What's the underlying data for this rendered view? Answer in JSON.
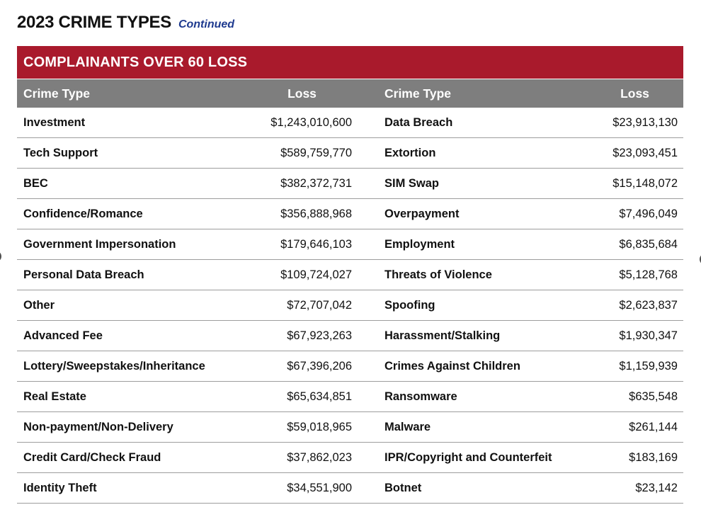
{
  "page": {
    "title": "2023 CRIME TYPES",
    "subtitle": "Continued"
  },
  "table": {
    "banner": "COMPLAINANTS OVER 60 LOSS",
    "column_headers": {
      "crime_type": "Crime Type",
      "loss": "Loss"
    },
    "rows": [
      {
        "left_type": "Investment",
        "left_loss": "$1,243,010,600",
        "right_type": "Data Breach",
        "right_loss": "$23,913,130"
      },
      {
        "left_type": "Tech Support",
        "left_loss": "$589,759,770",
        "right_type": "Extortion",
        "right_loss": "$23,093,451"
      },
      {
        "left_type": "BEC",
        "left_loss": "$382,372,731",
        "right_type": "SIM Swap",
        "right_loss": "$15,148,072"
      },
      {
        "left_type": "Confidence/Romance",
        "left_loss": "$356,888,968",
        "right_type": "Overpayment",
        "right_loss": "$7,496,049"
      },
      {
        "left_type": "Government Impersonation",
        "left_loss": "$179,646,103",
        "right_type": "Employment",
        "right_loss": "$6,835,684"
      },
      {
        "left_type": "Personal Data Breach",
        "left_loss": "$109,724,027",
        "right_type": "Threats of Violence",
        "right_loss": "$5,128,768"
      },
      {
        "left_type": "Other",
        "left_loss": "$72,707,042",
        "right_type": "Spoofing",
        "right_loss": "$2,623,837"
      },
      {
        "left_type": "Advanced Fee",
        "left_loss": "$67,923,263",
        "right_type": "Harassment/Stalking",
        "right_loss": "$1,930,347"
      },
      {
        "left_type": "Lottery/Sweepstakes/Inheritance",
        "left_loss": "$67,396,206",
        "right_type": "Crimes Against Children",
        "right_loss": "$1,159,939"
      },
      {
        "left_type": "Real Estate",
        "left_loss": "$65,634,851",
        "right_type": "Ransomware",
        "right_loss": "$635,548"
      },
      {
        "left_type": "Non-payment/Non-Delivery",
        "left_loss": "$59,018,965",
        "right_type": "Malware",
        "right_loss": "$261,144"
      },
      {
        "left_type": "Credit Card/Check Fraud",
        "left_loss": "$37,862,023",
        "right_type": "IPR/Copyright and Counterfeit",
        "right_loss": "$183,169"
      },
      {
        "left_type": "Identity Theft",
        "left_loss": "$34,551,900",
        "right_type": "Botnet",
        "right_loss": "$23,142"
      }
    ]
  },
  "icons": {
    "left_edge": "page-nav-circle-left",
    "right_edge": "page-nav-circle-right"
  },
  "colors": {
    "banner_red": "#A91A2C",
    "header_gray": "#7E7E7E",
    "subtitle_blue": "#1E3A8F",
    "row_line": "#9D9D9D",
    "nav_gray": "#4F4F4F"
  }
}
